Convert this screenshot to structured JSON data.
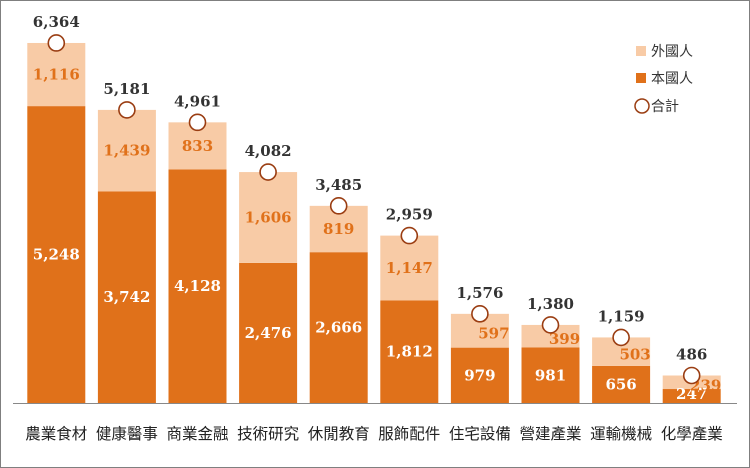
{
  "chart_data": {
    "type": "bar",
    "stacked": true,
    "categories": [
      "農業食材",
      "健康醫事",
      "商業金融",
      "技術研究",
      "休閒教育",
      "服飾配件",
      "住宅設備",
      "營建產業",
      "運輸機械",
      "化學產業"
    ],
    "series": [
      {
        "name": "本國人",
        "values": [
          5248,
          3742,
          4128,
          2476,
          2666,
          1812,
          979,
          981,
          656,
          247
        ],
        "color": "#e0711a"
      },
      {
        "name": "外國人",
        "values": [
          1116,
          1439,
          833,
          1606,
          819,
          1147,
          597,
          399,
          503,
          239
        ],
        "color": "#f8cba6"
      }
    ],
    "totals": {
      "name": "合計",
      "values": [
        6364,
        5181,
        4961,
        4082,
        3485,
        2959,
        1576,
        1380,
        1159,
        486
      ],
      "marker": "circle",
      "marker_color": "#9a3d12"
    },
    "value_labels": {
      "domestic": [
        "5,248",
        "3,742",
        "4,128",
        "2,476",
        "2,666",
        "1,812",
        "979",
        "981",
        "656",
        "247"
      ],
      "foreign": [
        "1,116",
        "1,439",
        "833",
        "1,606",
        "819",
        "1,147",
        "597",
        "399",
        "503",
        "239"
      ],
      "total": [
        "6,364",
        "5,181",
        "4,961",
        "4,082",
        "3,485",
        "2,959",
        "1,576",
        "1,380",
        "1,159",
        "486"
      ]
    },
    "ylim": [
      0,
      7000
    ],
    "grid": false,
    "legend_position": "top-right",
    "colors": {
      "domestic_label": "#ffffff",
      "foreign_label": "#e0711a",
      "total_label": "#333333",
      "axis": "#888888"
    }
  }
}
